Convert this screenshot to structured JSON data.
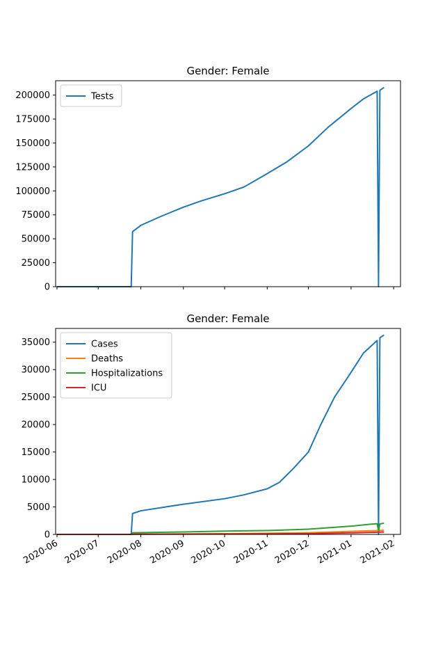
{
  "chart_data": [
    {
      "type": "line",
      "title": "Gender: Female",
      "xlim": [
        "2020-05-31",
        "2021-02-06"
      ],
      "ylim": [
        0,
        215000
      ],
      "x_ticks": [
        "2020-06-01",
        "2020-07-01",
        "2020-08-01",
        "2020-09-01",
        "2020-10-01",
        "2020-11-01",
        "2020-12-01",
        "2021-01-01",
        "2021-02-01"
      ],
      "y_ticks": [
        0,
        25000,
        50000,
        75000,
        100000,
        125000,
        150000,
        175000,
        200000
      ],
      "y_tick_labels": [
        "0",
        "25000",
        "50000",
        "75000",
        "100000",
        "125000",
        "150000",
        "175000",
        "200000"
      ],
      "show_x_tick_labels": false,
      "legend": {
        "placement": "upper left"
      },
      "series": [
        {
          "name": "Tests",
          "color": "#1f77b4",
          "points": [
            [
              "2020-06-01",
              0
            ],
            [
              "2020-07-25",
              0
            ],
            [
              "2020-07-26",
              57500
            ],
            [
              "2020-08-01",
              64000
            ],
            [
              "2020-08-15",
              73000
            ],
            [
              "2020-09-01",
              83000
            ],
            [
              "2020-09-15",
              90000
            ],
            [
              "2020-10-01",
              97000
            ],
            [
              "2020-10-15",
              104000
            ],
            [
              "2020-11-01",
              118000
            ],
            [
              "2020-11-15",
              130000
            ],
            [
              "2020-12-01",
              147000
            ],
            [
              "2020-12-15",
              166000
            ],
            [
              "2021-01-01",
              186000
            ],
            [
              "2021-01-10",
              196000
            ],
            [
              "2021-01-20",
              204000
            ],
            [
              "2021-01-21",
              0
            ],
            [
              "2021-01-22",
              205000
            ],
            [
              "2021-01-25",
              208000
            ]
          ]
        }
      ]
    },
    {
      "type": "line",
      "title": "Gender: Female",
      "xlim": [
        "2020-05-31",
        "2021-02-06"
      ],
      "ylim": [
        0,
        37500
      ],
      "x_ticks": [
        "2020-06-01",
        "2020-07-01",
        "2020-08-01",
        "2020-09-01",
        "2020-10-01",
        "2020-11-01",
        "2020-12-01",
        "2021-01-01",
        "2021-02-01"
      ],
      "x_tick_labels": [
        "2020-06",
        "2020-07",
        "2020-08",
        "2020-09",
        "2020-10",
        "2020-11",
        "2020-12",
        "2021-01",
        "2021-02"
      ],
      "y_ticks": [
        0,
        5000,
        10000,
        15000,
        20000,
        25000,
        30000,
        35000
      ],
      "y_tick_labels": [
        "0",
        "5000",
        "10000",
        "15000",
        "20000",
        "25000",
        "30000",
        "35000"
      ],
      "show_x_tick_labels": true,
      "legend": {
        "placement": "upper left"
      },
      "series": [
        {
          "name": "Cases",
          "color": "#1f77b4",
          "points": [
            [
              "2020-06-01",
              0
            ],
            [
              "2020-07-25",
              0
            ],
            [
              "2020-07-26",
              3800
            ],
            [
              "2020-08-01",
              4300
            ],
            [
              "2020-09-01",
              5500
            ],
            [
              "2020-10-01",
              6500
            ],
            [
              "2020-10-15",
              7200
            ],
            [
              "2020-11-01",
              8300
            ],
            [
              "2020-11-10",
              9500
            ],
            [
              "2020-11-20",
              12000
            ],
            [
              "2020-12-01",
              15000
            ],
            [
              "2020-12-10",
              20000
            ],
            [
              "2020-12-20",
              25000
            ],
            [
              "2021-01-01",
              29500
            ],
            [
              "2021-01-10",
              33000
            ],
            [
              "2021-01-20",
              35300
            ],
            [
              "2021-01-21",
              0
            ],
            [
              "2021-01-22",
              35800
            ],
            [
              "2021-01-25",
              36300
            ]
          ]
        },
        {
          "name": "Deaths",
          "color": "#ff7f0e",
          "points": [
            [
              "2020-06-01",
              0
            ],
            [
              "2020-07-25",
              0
            ],
            [
              "2020-07-26",
              50
            ],
            [
              "2020-10-01",
              120
            ],
            [
              "2020-12-01",
              300
            ],
            [
              "2021-01-01",
              550
            ],
            [
              "2021-01-20",
              700
            ],
            [
              "2021-01-25",
              750
            ]
          ]
        },
        {
          "name": "Hospitalizations",
          "color": "#2ca02c",
          "points": [
            [
              "2020-06-01",
              0
            ],
            [
              "2020-07-25",
              0
            ],
            [
              "2020-07-26",
              300
            ],
            [
              "2020-09-01",
              450
            ],
            [
              "2020-10-01",
              600
            ],
            [
              "2020-11-01",
              700
            ],
            [
              "2020-12-01",
              950
            ],
            [
              "2021-01-01",
              1500
            ],
            [
              "2021-01-15",
              1850
            ],
            [
              "2021-01-20",
              1950
            ],
            [
              "2021-01-21",
              600
            ],
            [
              "2021-01-22",
              1900
            ],
            [
              "2021-01-25",
              2050
            ]
          ]
        },
        {
          "name": "ICU",
          "color": "#d62728",
          "points": [
            [
              "2020-06-01",
              0
            ],
            [
              "2020-07-25",
              0
            ],
            [
              "2020-07-26",
              30
            ],
            [
              "2020-10-01",
              60
            ],
            [
              "2020-12-01",
              150
            ],
            [
              "2021-01-01",
              280
            ],
            [
              "2021-01-25",
              420
            ]
          ]
        }
      ]
    }
  ]
}
